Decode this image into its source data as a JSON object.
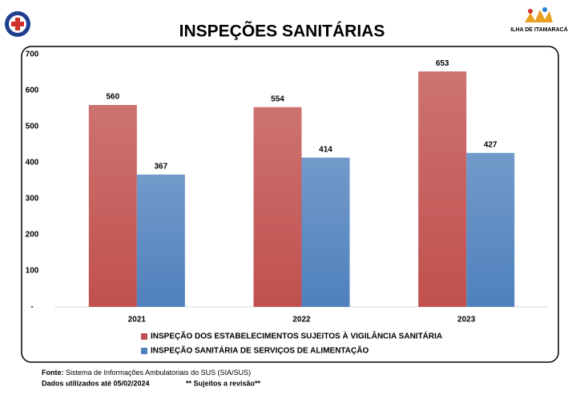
{
  "chart_data": {
    "type": "bar",
    "title": "INSPEÇÕES SANITÁRIAS",
    "categories": [
      "2021",
      "2022",
      "2023"
    ],
    "series": [
      {
        "name": "INSPEÇÃO DOS ESTABELECIMENTOS SUJEITOS À VIGILÂNCIA SANITÁRIA",
        "color": "#c0504d",
        "values": [
          560,
          554,
          653
        ]
      },
      {
        "name": "INSPEÇÃO SANITÁRIA DE SERVIÇOS DE ALIMENTAÇÃO",
        "color": "#4f81bd",
        "values": [
          367,
          414,
          427
        ]
      }
    ],
    "ylim": [
      0,
      700
    ],
    "yticks": [
      {
        "value": 0,
        "label": "-"
      },
      100,
      200,
      300,
      400,
      500,
      600,
      700
    ],
    "grid": false,
    "legend": "bottom"
  },
  "logos": {
    "right_text": "ILHA DE ITAMARACÁ"
  },
  "footer": {
    "source_label": "Fonte:",
    "source_text": "Sistema de Informações Ambulatoriais do SUS (SIA/SUS)",
    "data_note": "Dados utilizados até 05/02/2024",
    "revision_note": "** Sujeitos a revisão**"
  }
}
